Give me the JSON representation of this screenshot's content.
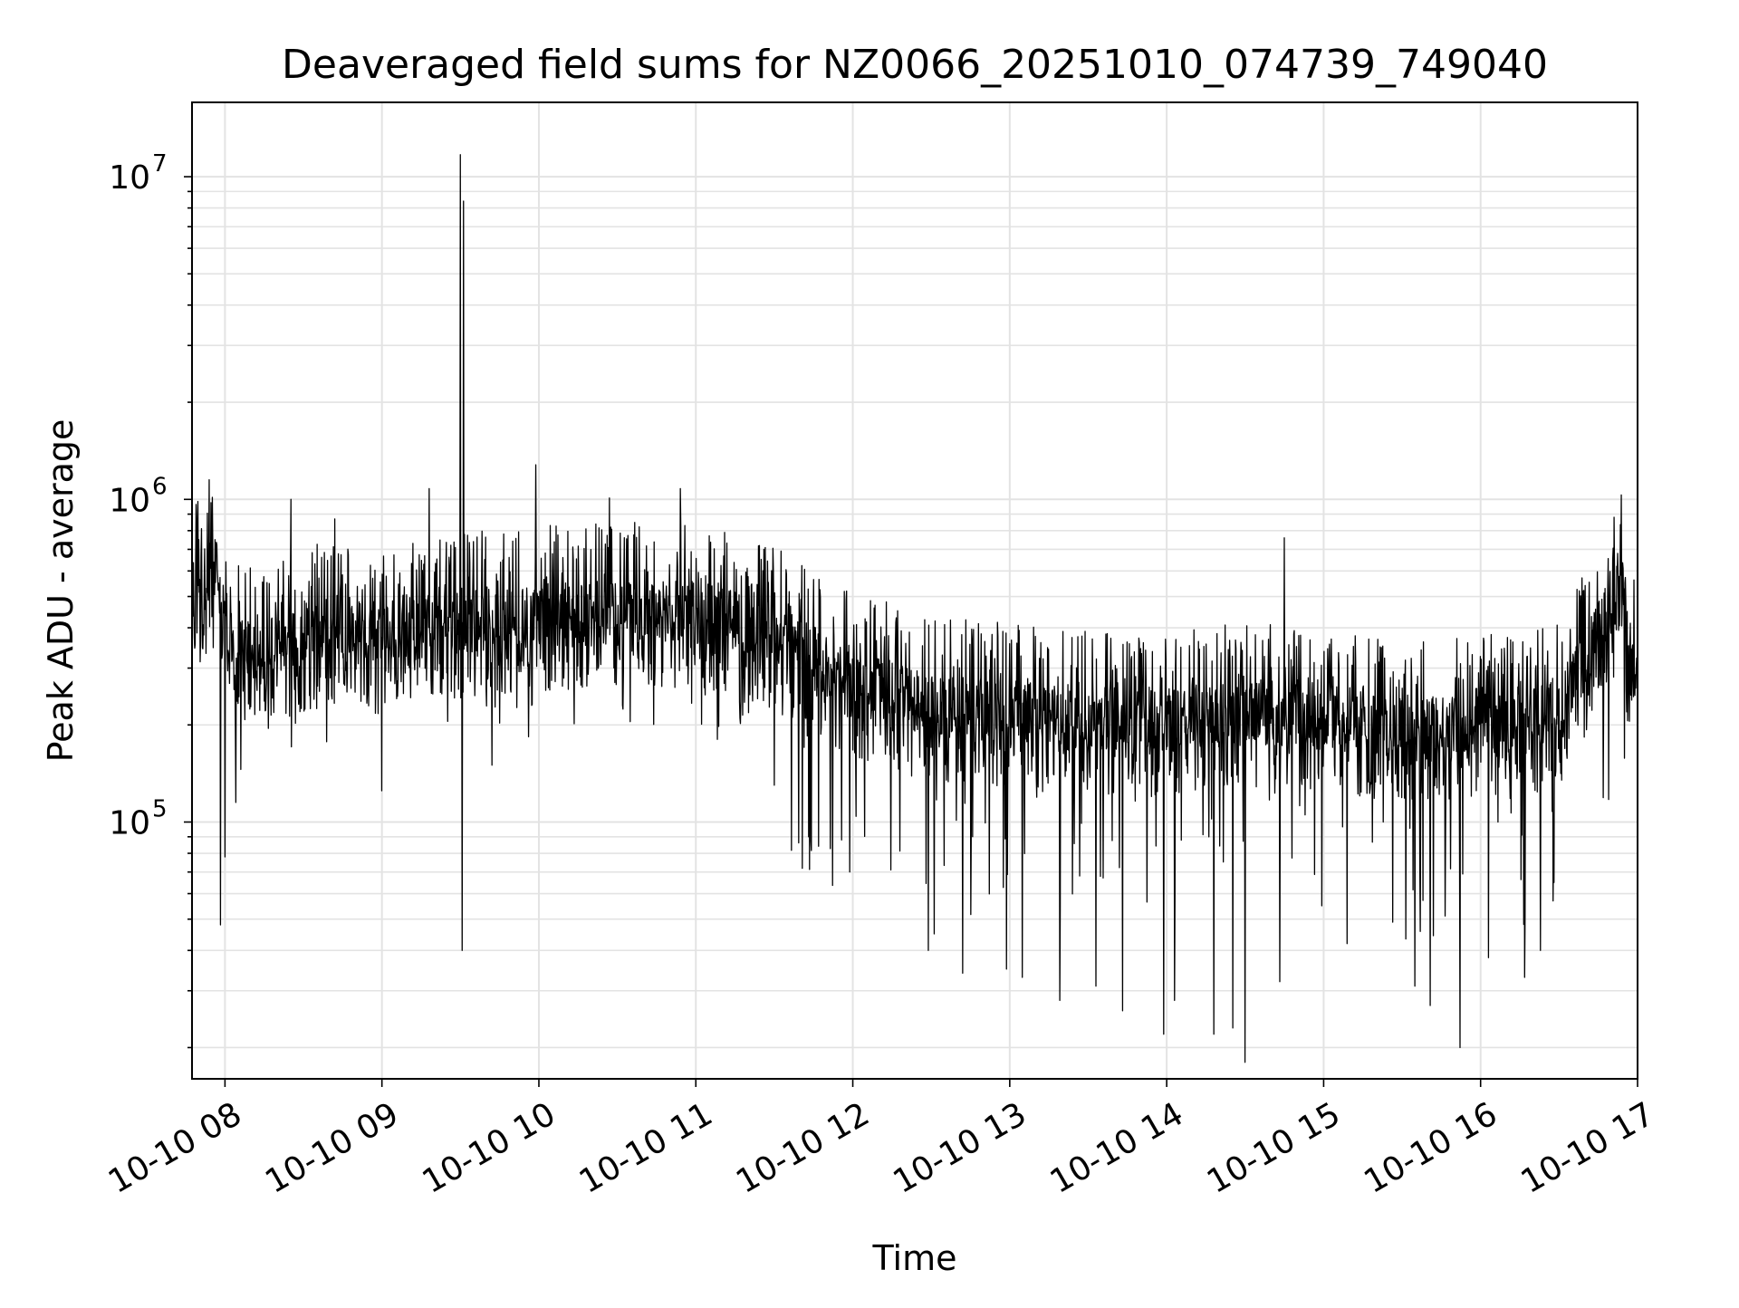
{
  "chart_data": {
    "type": "line",
    "title": "Deaveraged field sums for NZ0066_20251010_074739_749040",
    "xlabel": "Time",
    "ylabel": "Peak ADU - average",
    "yscale": "log",
    "ylim": [
      16000,
      17000000
    ],
    "xlim_hours": [
      7.79,
      17.0
    ],
    "grid": true,
    "x_tick_labels": [
      "10-10 08",
      "10-10 09",
      "10-10 10",
      "10-10 11",
      "10-10 12",
      "10-10 13",
      "10-10 14",
      "10-10 15",
      "10-10 16",
      "10-10 17"
    ],
    "x_tick_hours": [
      8,
      9,
      10,
      11,
      12,
      13,
      14,
      15,
      16,
      17
    ],
    "y_major_ticks": [
      {
        "value": 100000,
        "base": "10",
        "exp": "5"
      },
      {
        "value": 1000000,
        "base": "10",
        "exp": "6"
      },
      {
        "value": 10000000,
        "base": "10",
        "exp": "7"
      }
    ],
    "series": [
      {
        "name": "Deaveraged field sum",
        "color": "#000000",
        "trend": [
          {
            "h": 7.79,
            "v": 550000
          },
          {
            "h": 7.95,
            "v": 650000
          },
          {
            "h": 8.05,
            "v": 350000
          },
          {
            "h": 8.5,
            "v": 400000
          },
          {
            "h": 9.0,
            "v": 420000
          },
          {
            "h": 9.5,
            "v": 440000
          },
          {
            "h": 10.0,
            "v": 460000
          },
          {
            "h": 10.5,
            "v": 480000
          },
          {
            "h": 11.0,
            "v": 470000
          },
          {
            "h": 11.5,
            "v": 400000
          },
          {
            "h": 12.0,
            "v": 290000
          },
          {
            "h": 12.5,
            "v": 240000
          },
          {
            "h": 13.0,
            "v": 230000
          },
          {
            "h": 13.5,
            "v": 220000
          },
          {
            "h": 14.0,
            "v": 220000
          },
          {
            "h": 14.5,
            "v": 230000
          },
          {
            "h": 15.0,
            "v": 230000
          },
          {
            "h": 15.5,
            "v": 200000
          },
          {
            "h": 16.0,
            "v": 210000
          },
          {
            "h": 16.5,
            "v": 230000
          },
          {
            "h": 16.75,
            "v": 400000
          },
          {
            "h": 16.9,
            "v": 580000
          },
          {
            "h": 16.95,
            "v": 300000
          },
          {
            "h": 17.0,
            "v": 330000
          }
        ],
        "spikes": [
          {
            "h": 7.82,
            "v": 870000
          },
          {
            "h": 7.9,
            "v": 1150000
          },
          {
            "h": 7.97,
            "v": 48000
          },
          {
            "h": 8.0,
            "v": 78000
          },
          {
            "h": 8.07,
            "v": 115000
          },
          {
            "h": 8.42,
            "v": 1000000
          },
          {
            "h": 8.7,
            "v": 870000
          },
          {
            "h": 9.0,
            "v": 125000
          },
          {
            "h": 9.3,
            "v": 1080000
          },
          {
            "h": 9.5,
            "v": 11700000
          },
          {
            "h": 9.51,
            "v": 40000
          },
          {
            "h": 9.52,
            "v": 8400000
          },
          {
            "h": 9.7,
            "v": 150000
          },
          {
            "h": 9.98,
            "v": 1280000
          },
          {
            "h": 10.45,
            "v": 1010000
          },
          {
            "h": 10.9,
            "v": 1080000
          },
          {
            "h": 11.5,
            "v": 130000
          },
          {
            "h": 11.72,
            "v": 90000
          },
          {
            "h": 11.98,
            "v": 70000
          },
          {
            "h": 12.48,
            "v": 40000
          },
          {
            "h": 12.52,
            "v": 45000
          },
          {
            "h": 12.7,
            "v": 34000
          },
          {
            "h": 12.98,
            "v": 35000
          },
          {
            "h": 13.08,
            "v": 33000
          },
          {
            "h": 13.32,
            "v": 28000
          },
          {
            "h": 13.55,
            "v": 31000
          },
          {
            "h": 13.72,
            "v": 26000
          },
          {
            "h": 13.98,
            "v": 22000
          },
          {
            "h": 14.05,
            "v": 28000
          },
          {
            "h": 14.3,
            "v": 22000
          },
          {
            "h": 14.5,
            "v": 18000
          },
          {
            "h": 14.42,
            "v": 23000
          },
          {
            "h": 14.75,
            "v": 760000
          },
          {
            "h": 14.72,
            "v": 32000
          },
          {
            "h": 15.15,
            "v": 42000
          },
          {
            "h": 15.58,
            "v": 31000
          },
          {
            "h": 15.68,
            "v": 27000
          },
          {
            "h": 15.87,
            "v": 20000
          },
          {
            "h": 16.05,
            "v": 38000
          },
          {
            "h": 16.28,
            "v": 33000
          },
          {
            "h": 16.38,
            "v": 40000
          },
          {
            "h": 16.85,
            "v": 880000
          }
        ]
      }
    ]
  }
}
